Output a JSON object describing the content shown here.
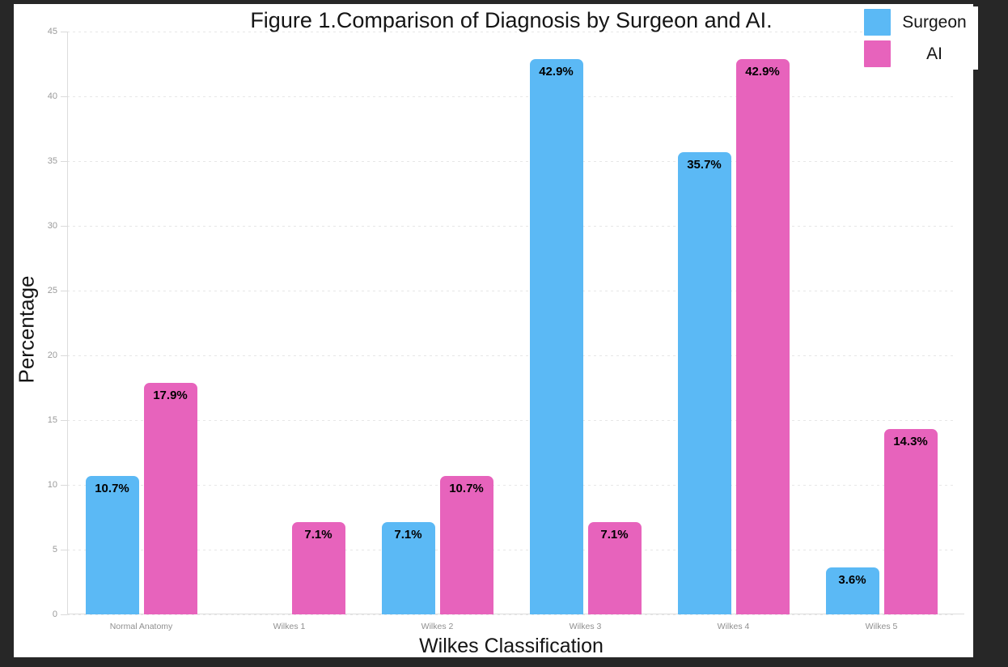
{
  "chart_data": {
    "type": "bar",
    "title": "Figure 1.Comparison of Diagnosis by Surgeon and AI.",
    "xlabel": "Wilkes Classification",
    "ylabel": "Percentage",
    "categories": [
      "Normal Anatomy",
      "Wilkes 1",
      "Wilkes 2",
      "Wilkes 3",
      "Wilkes 4",
      "Wilkes 5"
    ],
    "series": [
      {
        "name": "Surgeon",
        "color": "#5BB9F5",
        "values": [
          10.7,
          0,
          7.1,
          42.9,
          35.7,
          3.6
        ],
        "labels": [
          "10.7%",
          "",
          "7.1%",
          "42.9%",
          "35.7%",
          "3.6%"
        ]
      },
      {
        "name": "AI",
        "color": "#E763BC",
        "values": [
          17.9,
          7.1,
          10.7,
          7.1,
          42.9,
          14.3
        ],
        "labels": [
          "17.9%",
          "7.1%",
          "10.7%",
          "7.1%",
          "42.9%",
          "14.3%"
        ]
      }
    ],
    "ylim": [
      0,
      45
    ],
    "yticks": [
      0,
      5,
      10,
      15,
      20,
      25,
      30,
      35,
      40,
      45
    ],
    "grid": "horizontal-dashed",
    "legend_position": "top-right"
  },
  "colors": {
    "page_background": "#272727",
    "figure_background": "#ffffff",
    "surgeon_bar": "#5BB9F5",
    "ai_bar": "#E763BC",
    "gridline": "#e7e7e7",
    "axis_line": "#dcdcdc",
    "tick_text": "#9a9a9a",
    "label_text": "#000000"
  }
}
